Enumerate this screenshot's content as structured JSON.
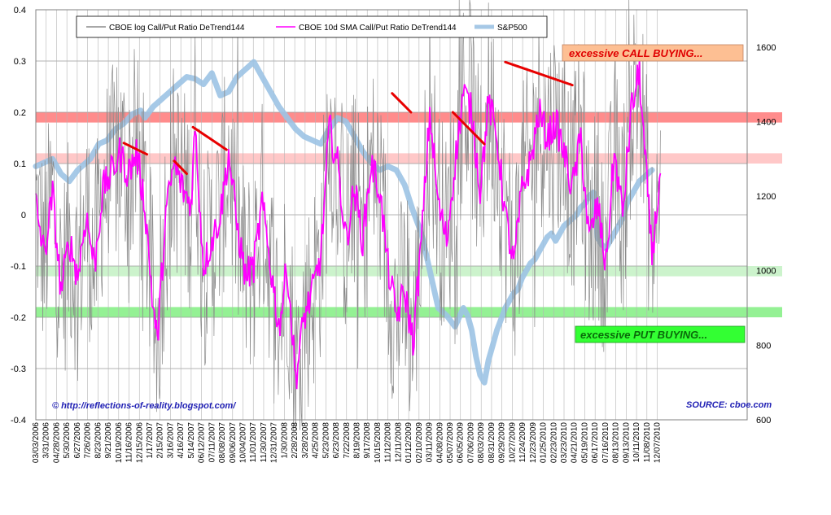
{
  "chart_data": {
    "type": "line",
    "title": "",
    "left_axis": {
      "min": -0.4,
      "max": 0.4,
      "ticks": [
        "0.4",
        "0.3",
        "0.2",
        "0.1",
        "0",
        "-0.1",
        "-0.2",
        "-0.3",
        "-0.4"
      ]
    },
    "right_axis": {
      "min": 600,
      "max": 1700,
      "ticks": [
        "1600",
        "1400",
        "1200",
        "1000",
        "800",
        "600"
      ]
    },
    "x_tick_labels": [
      "03/03/2006",
      "3/31/2006",
      "04/28/2006",
      "5/30/2006",
      "6/27/2006",
      "7/26/2006",
      "8/23/2006",
      "9/21/2006",
      "10/19/2006",
      "11/16/2006",
      "12/15/2006",
      "1/17/2007",
      "2/15/2007",
      "3/16/2007",
      "4/16/2007",
      "5/14/2007",
      "06/12/2007",
      "07/11/2007",
      "08/08/2007",
      "09/06/2007",
      "10/04/2007",
      "11/01/2007",
      "11/30/2007",
      "12/31/2007",
      "1/30/2008",
      "2/28/2008",
      "3/28/2008",
      "4/25/2008",
      "5/23/2008",
      "6/23/2008",
      "7/22/2008",
      "8/19/2008",
      "9/17/2008",
      "10/15/2008",
      "11/12/2008",
      "12/11/2008",
      "01/12/2009",
      "02/10/2009",
      "03/11/2009",
      "04/08/2009",
      "05/07/2009",
      "06/05/2009",
      "07/06/2009",
      "08/03/2009",
      "08/31/2009",
      "09/29/2009",
      "10/27/2009",
      "11/24/2009",
      "12/23/2009",
      "01/25/2010",
      "02/23/2010",
      "03/23/2010",
      "04/21/2010",
      "05/19/2010",
      "06/17/2010",
      "07/16/2010",
      "08/13/2010",
      "09/13/2010",
      "10/11/2010",
      "11/08/2010",
      "12/07/2010"
    ],
    "grid": true,
    "legend_placement": "top",
    "series": [
      {
        "name": "CBOE log Call/Put Ratio DeTrend144",
        "color": "#8c8c8c",
        "axis": "left"
      },
      {
        "name": "CBOE 10d SMA Call/Put Ratio DeTrend144",
        "color": "#ff00ff",
        "axis": "left"
      },
      {
        "name": "S&P500",
        "color": "#a6c8e6",
        "axis": "right"
      }
    ],
    "sp500_keypoints": [
      [
        0,
        1280
      ],
      [
        6,
        1295
      ],
      [
        8,
        1300
      ],
      [
        12,
        1260
      ],
      [
        16,
        1240
      ],
      [
        20,
        1270
      ],
      [
        26,
        1300
      ],
      [
        30,
        1340
      ],
      [
        34,
        1350
      ],
      [
        38,
        1380
      ],
      [
        42,
        1395
      ],
      [
        46,
        1420
      ],
      [
        50,
        1430
      ],
      [
        52,
        1410
      ],
      [
        56,
        1440
      ],
      [
        60,
        1460
      ],
      [
        64,
        1480
      ],
      [
        68,
        1500
      ],
      [
        72,
        1520
      ],
      [
        76,
        1515
      ],
      [
        80,
        1500
      ],
      [
        84,
        1530
      ],
      [
        88,
        1470
      ],
      [
        92,
        1480
      ],
      [
        96,
        1520
      ],
      [
        100,
        1540
      ],
      [
        104,
        1560
      ],
      [
        108,
        1520
      ],
      [
        112,
        1480
      ],
      [
        116,
        1440
      ],
      [
        120,
        1410
      ],
      [
        124,
        1380
      ],
      [
        128,
        1360
      ],
      [
        132,
        1350
      ],
      [
        136,
        1340
      ],
      [
        140,
        1380
      ],
      [
        144,
        1410
      ],
      [
        148,
        1400
      ],
      [
        152,
        1360
      ],
      [
        156,
        1320
      ],
      [
        160,
        1290
      ],
      [
        164,
        1270
      ],
      [
        168,
        1280
      ],
      [
        172,
        1270
      ],
      [
        176,
        1230
      ],
      [
        180,
        1160
      ],
      [
        184,
        1100
      ],
      [
        188,
        1000
      ],
      [
        192,
        900
      ],
      [
        196,
        880
      ],
      [
        200,
        850
      ],
      [
        204,
        900
      ],
      [
        206,
        880
      ],
      [
        208,
        840
      ],
      [
        210,
        770
      ],
      [
        212,
        720
      ],
      [
        214,
        700
      ],
      [
        216,
        760
      ],
      [
        218,
        800
      ],
      [
        220,
        840
      ],
      [
        222,
        870
      ],
      [
        224,
        900
      ],
      [
        226,
        920
      ],
      [
        228,
        940
      ],
      [
        230,
        950
      ],
      [
        232,
        980
      ],
      [
        234,
        1000
      ],
      [
        236,
        1020
      ],
      [
        238,
        1030
      ],
      [
        240,
        1050
      ],
      [
        242,
        1070
      ],
      [
        244,
        1090
      ],
      [
        246,
        1100
      ],
      [
        248,
        1080
      ],
      [
        250,
        1100
      ],
      [
        252,
        1120
      ],
      [
        254,
        1130
      ],
      [
        256,
        1140
      ],
      [
        258,
        1150
      ],
      [
        260,
        1170
      ],
      [
        262,
        1180
      ],
      [
        264,
        1200
      ],
      [
        266,
        1210
      ],
      [
        268,
        1090
      ],
      [
        270,
        1070
      ],
      [
        272,
        1060
      ],
      [
        274,
        1080
      ],
      [
        276,
        1100
      ],
      [
        278,
        1120
      ],
      [
        280,
        1140
      ],
      [
        282,
        1180
      ],
      [
        284,
        1200
      ],
      [
        286,
        1220
      ],
      [
        288,
        1240
      ],
      [
        290,
        1250
      ],
      [
        292,
        1260
      ],
      [
        294,
        1270
      ]
    ],
    "bands": [
      {
        "y_from": 0.18,
        "y_to": 0.2,
        "color": "#ff7f7f",
        "meaning": "upper red band"
      },
      {
        "y_from": 0.1,
        "y_to": 0.12,
        "color": "#ffc2c2",
        "meaning": "lower red band"
      },
      {
        "y_from": -0.12,
        "y_to": -0.1,
        "color": "#c6f2c6",
        "meaning": "upper green band"
      },
      {
        "y_from": -0.2,
        "y_to": -0.18,
        "color": "#88f088",
        "meaning": "lower green band"
      }
    ],
    "trend_lines": [
      [
        [
          42,
          0.14
        ],
        [
          53,
          0.118
        ]
      ],
      [
        [
          66,
          0.105
        ],
        [
          72,
          0.08
        ]
      ],
      [
        [
          75,
          0.171
        ],
        [
          91,
          0.127
        ]
      ],
      [
        [
          170,
          0.237
        ],
        [
          179,
          0.2
        ]
      ],
      [
        [
          199,
          0.2
        ],
        [
          214,
          0.138
        ]
      ],
      [
        [
          224,
          0.298
        ],
        [
          256,
          0.253
        ]
      ]
    ],
    "annotations": {
      "call": "excessive CALL BUYING...",
      "put": "excessive PUT BUYING...",
      "source": "SOURCE: cboe.com",
      "copyright": "© http://reflections-of-reality.blogspot.com/"
    }
  }
}
